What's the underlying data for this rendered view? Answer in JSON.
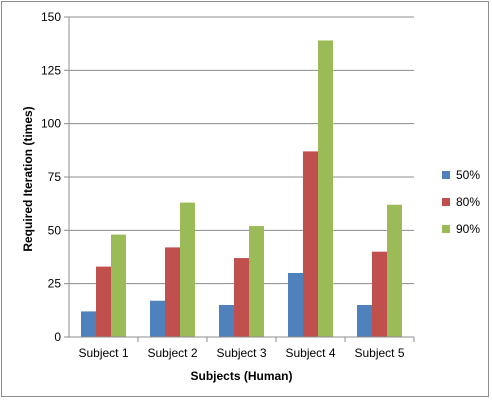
{
  "chart_data": {
    "type": "bar",
    "title": "",
    "xlabel": "Subjects (Human)",
    "ylabel": "Required Iteration (times)",
    "ylim": [
      0,
      150
    ],
    "yticks": [
      0,
      25,
      50,
      75,
      100,
      125,
      150
    ],
    "grid": true,
    "legend_position": "right",
    "categories": [
      "Subject 1",
      "Subject 2",
      "Subject 3",
      "Subject 4",
      "Subject 5"
    ],
    "series": [
      {
        "name": "50%",
        "color": "#4f81bd",
        "values": [
          12,
          17,
          15,
          30,
          15
        ]
      },
      {
        "name": "80%",
        "color": "#c0504d",
        "values": [
          33,
          42,
          37,
          87,
          40
        ]
      },
      {
        "name": "90%",
        "color": "#9bbb59",
        "values": [
          48,
          63,
          52,
          139,
          62
        ]
      }
    ]
  }
}
